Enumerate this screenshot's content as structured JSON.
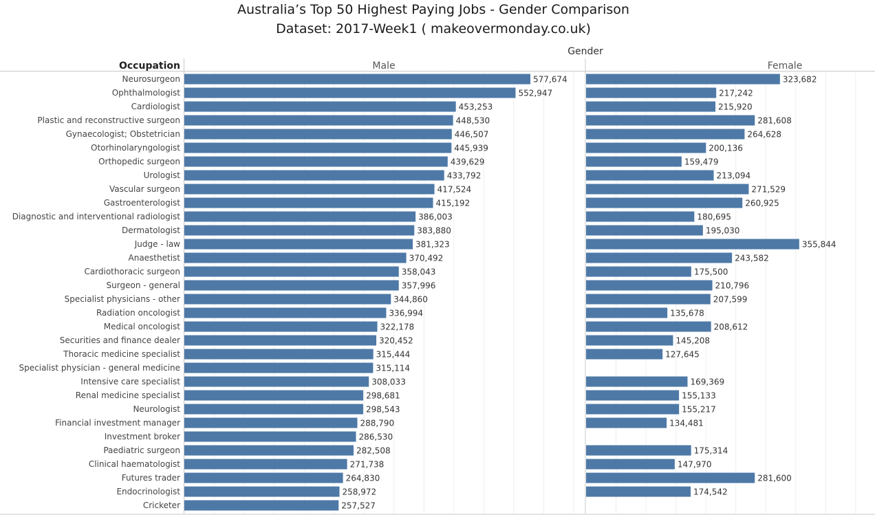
{
  "chart_data": {
    "type": "bar",
    "title": "Australia’s Top 50 Highest Paying Jobs - Gender Comparison",
    "subtitle": "Dataset: 2017-Week1 ( makeovermonday.co.uk)",
    "column_header": "Gender",
    "row_header": "Occupation",
    "xlim": [
      0,
      650000
    ],
    "grid": true,
    "categories": [
      "Neurosurgeon",
      "Ophthalmologist",
      "Cardiologist",
      "Plastic and reconstructive surgeon",
      "Gynaecologist; Obstetrician",
      "Otorhinolaryngologist",
      "Orthopedic surgeon",
      "Urologist",
      "Vascular surgeon",
      "Gastroenterologist",
      "Diagnostic and interventional radiologist",
      "Dermatologist",
      "Judge - law",
      "Anaesthetist",
      "Cardiothoracic surgeon",
      "Surgeon - general",
      "Specialist physicians - other",
      "Radiation oncologist",
      "Medical oncologist",
      "Securities and finance dealer",
      "Thoracic medicine specialist",
      "Specialist physician - general medicine",
      "Intensive care specialist",
      "Renal medicine specialist",
      "Neurologist",
      "Financial investment manager",
      "Investment broker",
      "Paediatric surgeon",
      "Clinical haematologist",
      "Futures trader",
      "Endocrinologist",
      "Cricketer"
    ],
    "series": [
      {
        "name": "Male",
        "values": [
          577674,
          552947,
          453253,
          448530,
          446507,
          445939,
          439629,
          433792,
          417524,
          415192,
          386003,
          383880,
          381323,
          370492,
          358043,
          357996,
          344860,
          336994,
          322178,
          320452,
          315444,
          315114,
          308033,
          298681,
          298543,
          288790,
          286530,
          282508,
          271738,
          264830,
          258972,
          257527
        ]
      },
      {
        "name": "Female",
        "values": [
          323682,
          217242,
          215920,
          281608,
          264628,
          200136,
          159479,
          213094,
          271529,
          260925,
          180695,
          195030,
          355844,
          243582,
          175500,
          210796,
          207599,
          135678,
          208612,
          145208,
          127645,
          null,
          169369,
          155133,
          155217,
          134481,
          null,
          175314,
          147970,
          281600,
          174542,
          null
        ]
      }
    ],
    "bar_color": "#4e79a7"
  }
}
